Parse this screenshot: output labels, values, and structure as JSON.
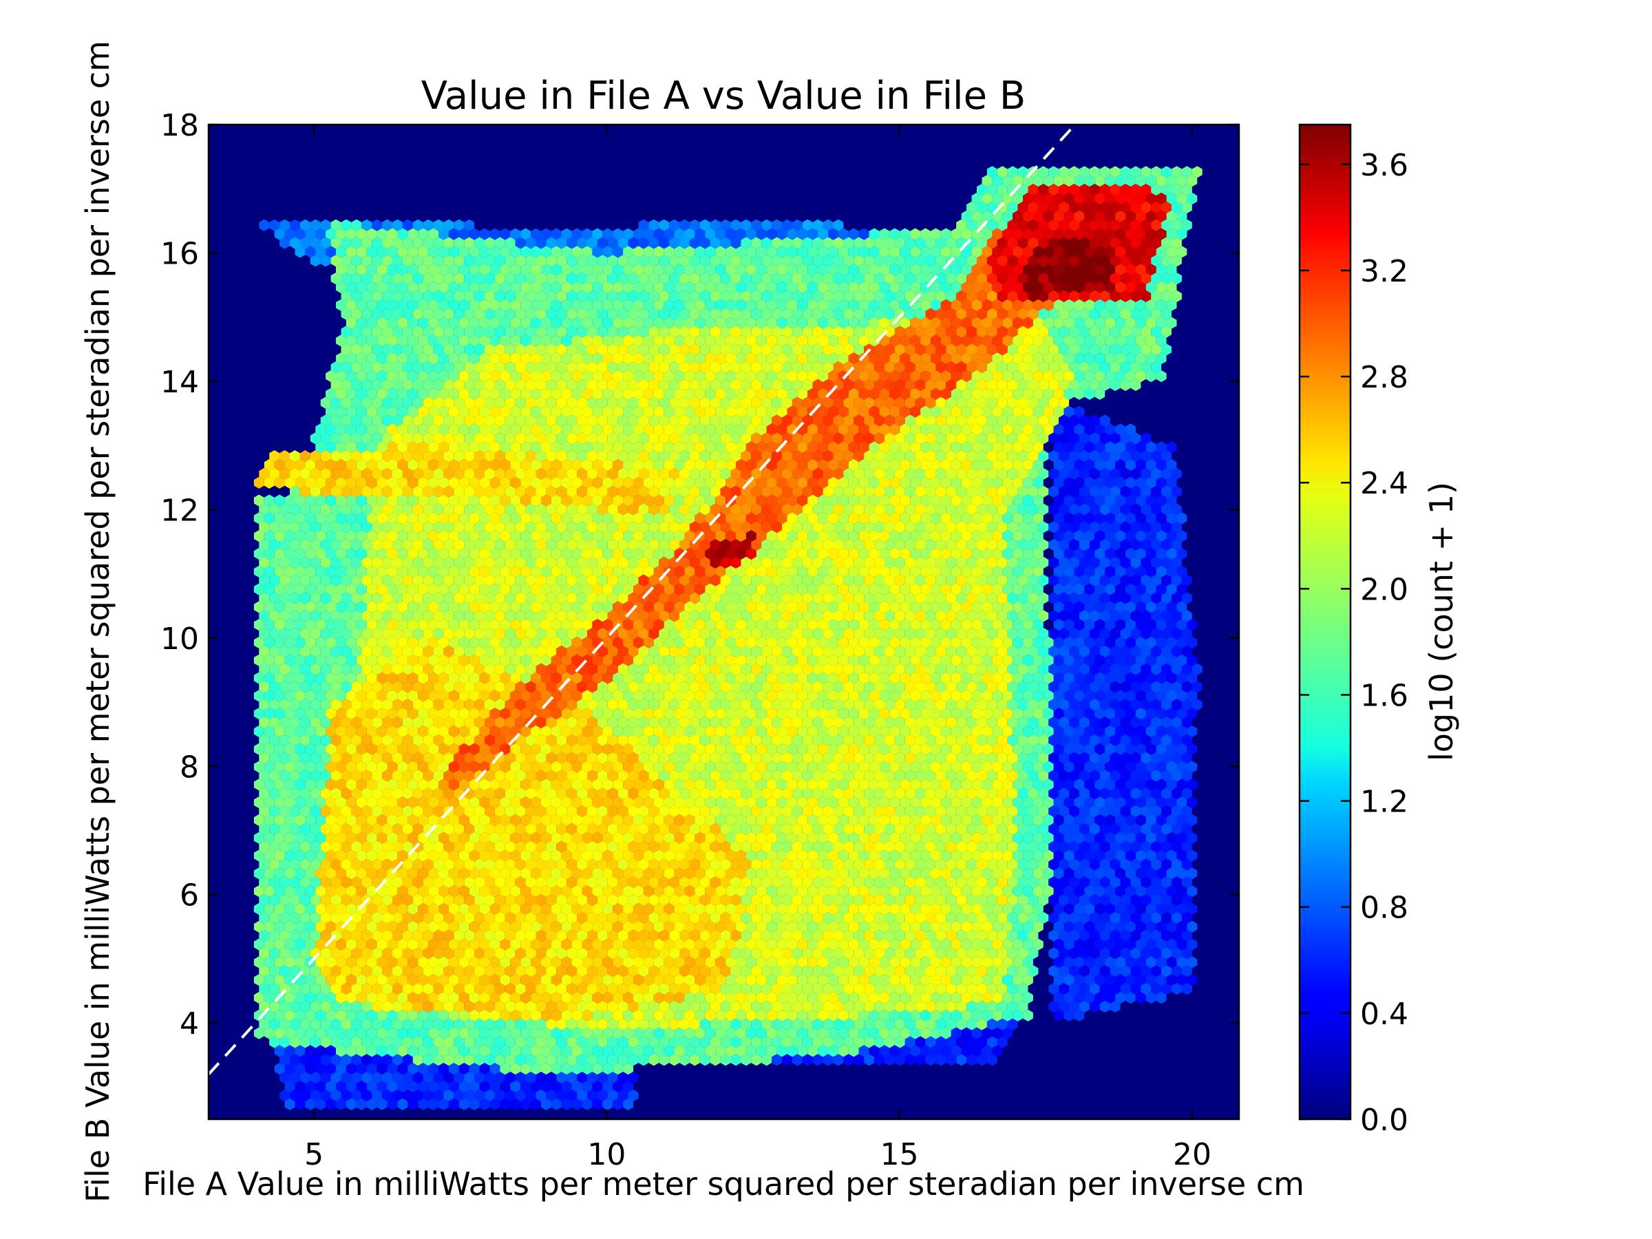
{
  "chart_data": {
    "type": "heatmap",
    "subtype": "hexbin",
    "title": "Value in File A vs Value in File B",
    "xlabel": "File A Value in milliWatts per meter squared per steradian per inverse cm",
    "ylabel": "File B Value in milliWatts per meter squared per steradian per inverse cm",
    "xlim": [
      3.2,
      20.8
    ],
    "ylim": [
      2.5,
      18.0
    ],
    "x_ticks": [
      5,
      10,
      15,
      20
    ],
    "x_tick_labels": [
      "5",
      "10",
      "15",
      "20"
    ],
    "y_ticks": [
      4,
      6,
      8,
      10,
      12,
      14,
      16,
      18
    ],
    "y_tick_labels": [
      "4",
      "6",
      "8",
      "10",
      "12",
      "14",
      "16",
      "18"
    ],
    "colorbar": {
      "label": "log10 (count + 1)",
      "range": [
        0.0,
        3.75
      ],
      "ticks": [
        0.0,
        0.4,
        0.8,
        1.2,
        1.6,
        2.0,
        2.4,
        2.8,
        3.2,
        3.6
      ],
      "tick_labels": [
        "0.0",
        "0.4",
        "0.8",
        "1.2",
        "1.6",
        "2.0",
        "2.4",
        "2.8",
        "3.2",
        "3.6"
      ],
      "colormap": "jet"
    },
    "reference_line": {
      "type": "1:1",
      "style": "dashed",
      "color": "#ffffff"
    },
    "background_color": "#00007f",
    "density_regions": [
      {
        "name": "main-body",
        "polygon": [
          [
            4.0,
            3.9
          ],
          [
            4.0,
            12.2
          ],
          [
            4.8,
            12.3
          ],
          [
            5.5,
            14.9
          ],
          [
            5.2,
            16.5
          ],
          [
            10,
            16.0
          ],
          [
            16.0,
            16.4
          ],
          [
            16.6,
            17.4
          ],
          [
            20.1,
            17.3
          ],
          [
            19.5,
            14.0
          ],
          [
            17.5,
            13.6
          ],
          [
            17.6,
            6.2
          ],
          [
            17.2,
            4.1
          ],
          [
            14,
            3.5
          ],
          [
            9,
            3.2
          ],
          [
            6,
            3.5
          ],
          [
            4.2,
            3.7
          ]
        ],
        "value": 1.75
      },
      {
        "name": "core-band",
        "polygon": [
          [
            6.3,
            4.2
          ],
          [
            10,
            3.9
          ],
          [
            14,
            4.1
          ],
          [
            16.8,
            4.3
          ],
          [
            17.0,
            6.4
          ],
          [
            16.8,
            11.8
          ],
          [
            18.0,
            14.0
          ],
          [
            17.4,
            15.0
          ],
          [
            11.0,
            14.8
          ],
          [
            8.0,
            14.5
          ],
          [
            6.0,
            13.0
          ],
          [
            5.7,
            8.5
          ],
          [
            5.4,
            5.0
          ]
        ],
        "value": 2.2
      },
      {
        "name": "lower-left-core",
        "polygon": [
          [
            5.5,
            4.3
          ],
          [
            9,
            4.0
          ],
          [
            12,
            4.5
          ],
          [
            12.5,
            6.5
          ],
          [
            9.5,
            9.0
          ],
          [
            7.0,
            10.0
          ],
          [
            5.3,
            9.0
          ],
          [
            5.0,
            5.0
          ]
        ],
        "value": 2.45
      },
      {
        "name": "upper-left-streak",
        "polygon": [
          [
            4.0,
            12.3
          ],
          [
            7.5,
            12.2
          ],
          [
            11.0,
            11.9
          ],
          [
            11.2,
            12.6
          ],
          [
            7.0,
            13.0
          ],
          [
            4.2,
            12.9
          ]
        ],
        "value": 2.45
      },
      {
        "name": "diagonal-ridge",
        "polygon": [
          [
            7.1,
            7.4
          ],
          [
            8.5,
            8.4
          ],
          [
            10.0,
            9.3
          ],
          [
            11.5,
            10.6
          ],
          [
            13.0,
            11.8
          ],
          [
            14.6,
            13.0
          ],
          [
            16.4,
            14.2
          ],
          [
            17.5,
            15.1
          ],
          [
            19.0,
            16.6
          ],
          [
            19.6,
            16.9
          ],
          [
            17.3,
            17.1
          ],
          [
            15.8,
            15.2
          ],
          [
            14.0,
            14.3
          ],
          [
            12.6,
            13.2
          ],
          [
            11.3,
            11.5
          ],
          [
            9.8,
            10.2
          ],
          [
            8.4,
            9.2
          ],
          [
            7.3,
            8.0
          ]
        ],
        "value": 2.9
      },
      {
        "name": "upper-right-hot",
        "polygon": [
          [
            16.6,
            15.2
          ],
          [
            19.2,
            15.2
          ],
          [
            19.6,
            16.8
          ],
          [
            19.0,
            17.1
          ],
          [
            17.2,
            17.0
          ],
          [
            16.5,
            16.0
          ]
        ],
        "value": 3.35
      },
      {
        "name": "peak",
        "polygon": [
          [
            17.2,
            15.3
          ],
          [
            18.6,
            15.4
          ],
          [
            18.6,
            16.1
          ],
          [
            17.8,
            16.3
          ],
          [
            17.0,
            15.8
          ]
        ],
        "value": 3.7
      },
      {
        "name": "mid-peak",
        "polygon": [
          [
            11.7,
            11.1
          ],
          [
            12.6,
            11.2
          ],
          [
            12.5,
            11.6
          ],
          [
            11.8,
            11.5
          ]
        ],
        "value": 3.5
      },
      {
        "name": "right-sparse",
        "polygon": [
          [
            17.6,
            4.0
          ],
          [
            20.0,
            4.5
          ],
          [
            20.1,
            9.5
          ],
          [
            19.7,
            13.0
          ],
          [
            17.6,
            13.7
          ]
        ],
        "value": 0.6
      },
      {
        "name": "bottom-sparse",
        "polygon": [
          [
            4.5,
            2.6
          ],
          [
            10.5,
            2.6
          ],
          [
            10.5,
            3.4
          ],
          [
            16.5,
            3.3
          ],
          [
            17.0,
            4.0
          ],
          [
            4.3,
            3.9
          ]
        ],
        "value": 0.6
      },
      {
        "name": "top-left-sparse",
        "polygon": [
          [
            4.0,
            16.5
          ],
          [
            9.5,
            16.4
          ],
          [
            13.0,
            16.5
          ],
          [
            16.0,
            16.3
          ],
          [
            16.0,
            15.6
          ],
          [
            5.0,
            15.8
          ]
        ],
        "value": 0.9
      }
    ]
  }
}
